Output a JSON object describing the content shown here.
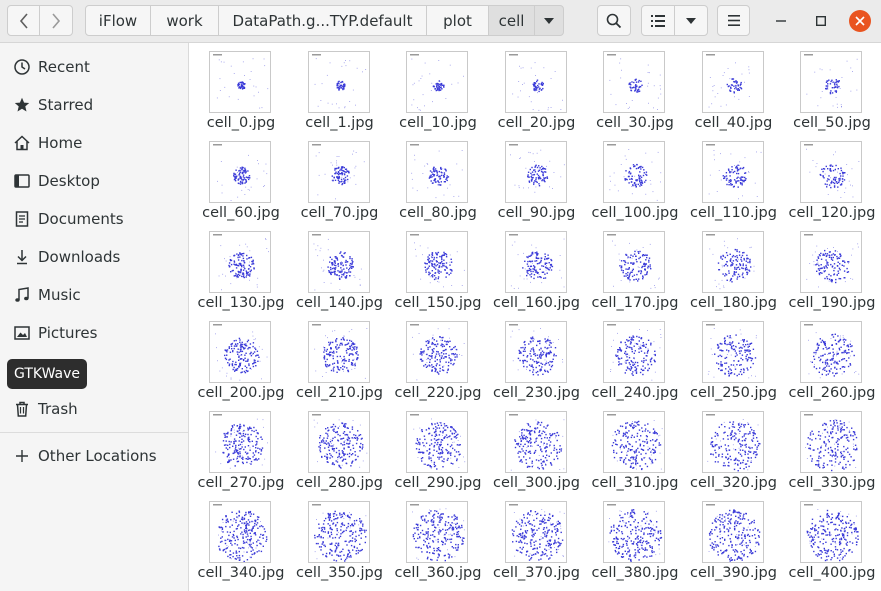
{
  "header": {
    "breadcrumbs": [
      "iFlow",
      "work",
      "DataPath.g...TYP.default",
      "plot",
      "cell"
    ],
    "icons": {
      "back": "chevron-left-icon",
      "forward": "chevron-right-icon",
      "path_menu": "caret-down-icon",
      "search": "search-icon",
      "list_view": "list-view-icon",
      "view_options": "caret-down-icon",
      "main_menu": "hamburger-menu-icon",
      "minimize": "minimize-icon",
      "maximize": "maximize-icon",
      "close": "close-icon"
    },
    "close_color": "#e95420"
  },
  "sidebar": {
    "items": [
      {
        "label": "Recent",
        "icon": "clock-icon"
      },
      {
        "label": "Starred",
        "icon": "star-icon"
      },
      {
        "label": "Home",
        "icon": "home-icon"
      },
      {
        "label": "Desktop",
        "icon": "desktop-icon"
      },
      {
        "label": "Documents",
        "icon": "document-icon"
      },
      {
        "label": "Downloads",
        "icon": "download-icon"
      },
      {
        "label": "Music",
        "icon": "music-icon"
      },
      {
        "label": "Pictures",
        "icon": "picture-icon"
      },
      {
        "label": "Trash",
        "icon": "trash-icon"
      },
      {
        "label": "Other Locations",
        "icon": "plus-icon"
      }
    ],
    "tooltip": "GTKWave"
  },
  "files": [
    "cell_0.jpg",
    "cell_1.jpg",
    "cell_10.jpg",
    "cell_20.jpg",
    "cell_30.jpg",
    "cell_40.jpg",
    "cell_50.jpg",
    "cell_60.jpg",
    "cell_70.jpg",
    "cell_80.jpg",
    "cell_90.jpg",
    "cell_100.jpg",
    "cell_110.jpg",
    "cell_120.jpg",
    "cell_130.jpg",
    "cell_140.jpg",
    "cell_150.jpg",
    "cell_160.jpg",
    "cell_170.jpg",
    "cell_180.jpg",
    "cell_190.jpg",
    "cell_200.jpg",
    "cell_210.jpg",
    "cell_220.jpg",
    "cell_230.jpg",
    "cell_240.jpg",
    "cell_250.jpg",
    "cell_260.jpg",
    "cell_270.jpg",
    "cell_280.jpg",
    "cell_290.jpg",
    "cell_300.jpg",
    "cell_310.jpg",
    "cell_320.jpg",
    "cell_330.jpg",
    "cell_340.jpg",
    "cell_350.jpg",
    "cell_360.jpg",
    "cell_370.jpg",
    "cell_380.jpg",
    "cell_390.jpg",
    "cell_400.jpg"
  ],
  "thumbnail_color": "#3a3ad8"
}
